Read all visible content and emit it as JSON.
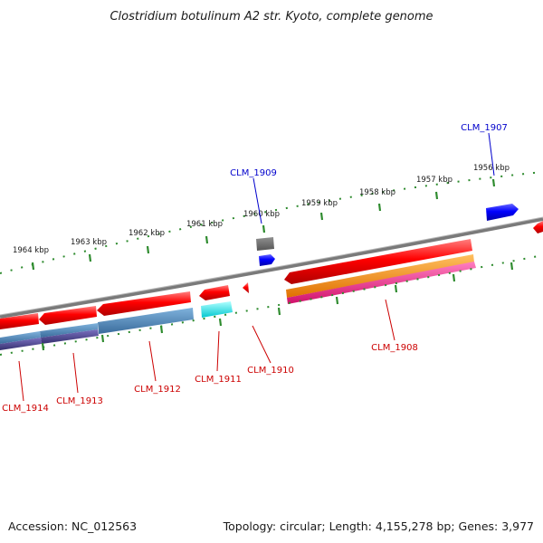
{
  "title": "Clostridium botulinum A2 str. Kyoto, complete genome",
  "kbp_labels": [
    "1964 kbp",
    "1963 kbp",
    "1962 kbp",
    "1961 kbp",
    "1960 kbp",
    "1959 kbp",
    "1958 kbp",
    "1957 kbp",
    "1956 kbp"
  ],
  "genes": [
    "CLM_1907",
    "CLM_1909",
    "CLM_1908",
    "CLM_1910",
    "CLM_1911",
    "CLM_1912",
    "CLM_1913",
    "CLM_1914"
  ],
  "footer": {
    "accession": "Accession: NC_012563",
    "summary": "Topology: circular; Length: 4,155,278 bp; Genes: 3,977"
  },
  "colors": {
    "forward_cds": "#ff0000",
    "blue_cds": "#0000ff",
    "backbone": "#808080",
    "ticks": "#2e8b2e",
    "orange_band": "#ff8c00",
    "magenta_band": "#ff1493",
    "steelblue_band": "#4682b4",
    "navy_band": "#483d8b",
    "cyan_band": "#00e5ee",
    "gray_box": "#666666"
  }
}
